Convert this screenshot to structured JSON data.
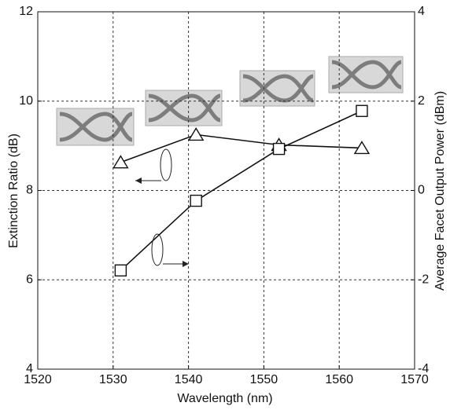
{
  "chart_data": {
    "type": "line",
    "x_label": "Wavelength (nm)",
    "y_label": "Extinction Ratio (dB)",
    "y2_label": "Average Facet Output Power (dBm)",
    "x": [
      1531,
      1541,
      1552,
      1563
    ],
    "series": [
      {
        "color": "#111111",
        "marker": "triangle",
        "axis": "y",
        "values": [
          8.63,
          9.25,
          9.02,
          8.95
        ]
      },
      {
        "color": "#111111",
        "marker": "square",
        "axis": "y2",
        "values": [
          -1.79,
          -0.23,
          0.93,
          1.78
        ]
      }
    ],
    "xlim": [
      1520,
      1570
    ],
    "xticks": [
      1520,
      1530,
      1540,
      1550,
      1560,
      1570
    ],
    "ylim": [
      4,
      12
    ],
    "yticks": [
      4,
      6,
      8,
      10,
      12
    ],
    "y2lim": [
      -4,
      4
    ],
    "y2ticks": [
      -4,
      -2,
      0,
      2,
      4
    ],
    "grid": true
  }
}
